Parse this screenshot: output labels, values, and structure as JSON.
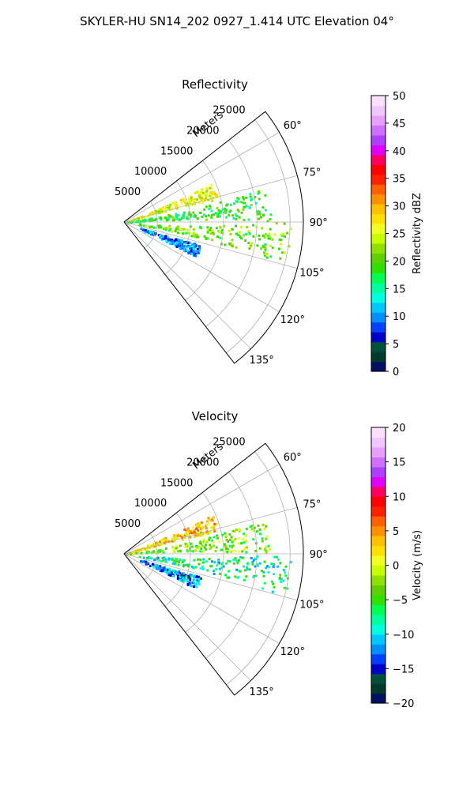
{
  "suptitle": "SKYLER-HU  SN14_202  0927_1.414 UTC Elevation 04°",
  "chart_data": [
    {
      "type": "heatmap",
      "projection": "polar-sector",
      "title": "Reflectivity",
      "radial_axis_label": "Meters",
      "radial_ticks": [
        5000,
        10000,
        15000,
        20000,
        25000
      ],
      "radial_tick_labels": [
        "5000",
        "10000",
        "15000",
        "20000",
        "25000"
      ],
      "r_max": 27000,
      "theta_range_deg": [
        52,
        142
      ],
      "theta_ticks_deg": [
        60,
        75,
        90,
        105,
        120,
        135
      ],
      "theta_tick_labels": [
        "60°",
        "75°",
        "90°",
        "105°",
        "120°",
        "135°"
      ],
      "grid": true,
      "colorbar": {
        "label": "Reflectivity dBZ",
        "range": [
          0,
          50
        ],
        "ticks": [
          0,
          5,
          10,
          15,
          20,
          25,
          30,
          35,
          40,
          45,
          50
        ],
        "tick_labels": [
          "0",
          "5",
          "10",
          "15",
          "20",
          "25",
          "30",
          "35",
          "40",
          "45",
          "50"
        ],
        "colors": [
          "#001060",
          "#003a2a",
          "#00503a",
          "#0000c8",
          "#0040ff",
          "#0090ff",
          "#00c8ff",
          "#00ffe0",
          "#00ffa0",
          "#00ff50",
          "#30e000",
          "#60d000",
          "#90e000",
          "#c8ff00",
          "#f0ff20",
          "#ffe000",
          "#ffc000",
          "#ff9000",
          "#ff6000",
          "#ff2000",
          "#ff0000",
          "#ff0060",
          "#e000ff",
          "#b040ff",
          "#d070ff",
          "#e8a0ff",
          "#f0c8ff",
          "#fce0ff"
        ]
      },
      "features": [
        {
          "theta_deg": 71,
          "r_range": [
            0,
            14500
          ],
          "value": 26
        },
        {
          "theta_deg": 83,
          "r_range": [
            0,
            22000
          ],
          "value": 18
        },
        {
          "theta_deg": 97,
          "r_range": [
            2000,
            25000
          ],
          "value": 21
        },
        {
          "theta_deg": 111,
          "r_range": [
            2500,
            12000
          ],
          "value": 10
        }
      ]
    },
    {
      "type": "heatmap",
      "projection": "polar-sector",
      "title": "Velocity",
      "radial_axis_label": "Meters",
      "radial_ticks": [
        5000,
        10000,
        15000,
        20000,
        25000
      ],
      "radial_tick_labels": [
        "5000",
        "10000",
        "15000",
        "20000",
        "25000"
      ],
      "r_max": 27000,
      "theta_range_deg": [
        52,
        142
      ],
      "theta_ticks_deg": [
        60,
        75,
        90,
        105,
        120,
        135
      ],
      "theta_tick_labels": [
        "60°",
        "75°",
        "90°",
        "105°",
        "120°",
        "135°"
      ],
      "grid": true,
      "colorbar": {
        "label": "Velocity (m/s)",
        "range": [
          -20,
          20
        ],
        "ticks": [
          -20,
          -15,
          -10,
          -5,
          0,
          5,
          10,
          15,
          20
        ],
        "tick_labels": [
          "−20",
          "−15",
          "−10",
          "−5",
          "0",
          "5",
          "10",
          "15",
          "20"
        ],
        "colors": [
          "#001060",
          "#003a2a",
          "#00503a",
          "#0000c8",
          "#0040ff",
          "#0090ff",
          "#00c8ff",
          "#00ffe0",
          "#00ffa0",
          "#00ff50",
          "#30e000",
          "#60d000",
          "#90e000",
          "#c8ff00",
          "#f0ff20",
          "#ffe000",
          "#ffc000",
          "#ff9000",
          "#ff6000",
          "#ff2000",
          "#ff0000",
          "#ff0060",
          "#e000ff",
          "#b040ff",
          "#d070ff",
          "#e8a0ff",
          "#f0c8ff",
          "#fce0ff"
        ]
      },
      "features": [
        {
          "theta_deg": 71,
          "r_range": [
            0,
            14500
          ],
          "value": 3
        },
        {
          "theta_deg": 83,
          "r_range": [
            0,
            22000
          ],
          "value": -3
        },
        {
          "theta_deg": 97,
          "r_range": [
            2000,
            25000
          ],
          "value": -8
        },
        {
          "theta_deg": 111,
          "r_range": [
            2500,
            12000
          ],
          "value": -12
        }
      ]
    }
  ]
}
